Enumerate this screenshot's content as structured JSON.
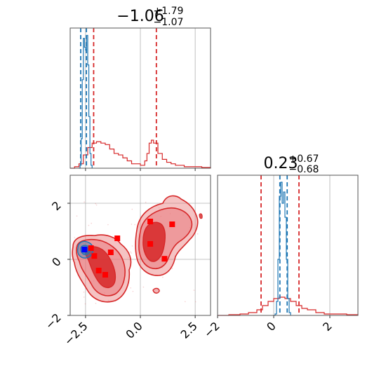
{
  "colors": {
    "red": "#d62728",
    "blue": "#1f77b4",
    "axis": "#555555",
    "grid": "#b0b0b0"
  },
  "chart_data": [
    {
      "type": "area",
      "panel": "top-left histogram",
      "title_main": "−1.06",
      "title_sup": "+1.79",
      "title_sub": "−1.07",
      "xlim": [
        -3.2,
        3.2
      ],
      "xgrid": [
        -2.5,
        0.0,
        2.5
      ],
      "series": [
        {
          "color": "red",
          "x": [
            -3.2,
            -3.0,
            -2.8,
            -2.6,
            -2.4,
            -2.2,
            -2.0,
            -1.8,
            -1.6,
            -1.4,
            -1.2,
            -1.0,
            -0.8,
            -0.6,
            -0.4,
            -0.2,
            0.0,
            0.2,
            0.3,
            0.4,
            0.5,
            0.6,
            0.8,
            1.0,
            1.2,
            1.4,
            1.6,
            1.8,
            2.0,
            2.4,
            2.8,
            3.2
          ],
          "values": [
            0,
            0.01,
            0.03,
            0.09,
            0.14,
            0.17,
            0.18,
            0.17,
            0.16,
            0.13,
            0.1,
            0.09,
            0.07,
            0.05,
            0.03,
            0.03,
            0.02,
            0.05,
            0.1,
            0.17,
            0.19,
            0.17,
            0.1,
            0.06,
            0.04,
            0.03,
            0.02,
            0.02,
            0.01,
            0.01,
            0.005,
            0
          ]
        },
        {
          "color": "blue",
          "x": [
            -2.8,
            -2.75,
            -2.7,
            -2.65,
            -2.6,
            -2.55,
            -2.5,
            -2.45,
            -2.4,
            -2.35,
            -2.3,
            -2.25,
            -2.2
          ],
          "values": [
            0,
            0.02,
            0.2,
            0.6,
            0.88,
            0.82,
            0.8,
            0.9,
            0.7,
            0.35,
            0.1,
            0.02,
            0
          ]
        }
      ],
      "quantile_lines": {
        "red": [
          -2.13,
          0.73
        ],
        "blue": [
          -2.72,
          -2.46
        ]
      }
    },
    {
      "type": "scatter",
      "panel": "bottom-left 2D density",
      "xlim": [
        -3.2,
        3.2
      ],
      "ylim": [
        -2,
        3
      ],
      "xticks": [
        "−2.5",
        "0.0",
        "2.5"
      ],
      "xtick_values": [
        -2.5,
        0.0,
        2.5
      ],
      "yticks": [
        "−2",
        "0",
        "2"
      ],
      "ytick_values": [
        -2,
        0,
        2
      ],
      "red_markers": [
        {
          "x": -1.05,
          "y": 0.75
        },
        {
          "x": -1.35,
          "y": 0.25
        },
        {
          "x": -2.25,
          "y": 0.4
        },
        {
          "x": -2.1,
          "y": 0.12
        },
        {
          "x": -1.9,
          "y": -0.4
        },
        {
          "x": -1.6,
          "y": -0.55
        },
        {
          "x": 0.45,
          "y": 1.35
        },
        {
          "x": 1.45,
          "y": 1.25
        },
        {
          "x": 0.45,
          "y": 0.55
        },
        {
          "x": 1.1,
          "y": 0.02
        }
      ],
      "blue_markers": [
        {
          "x": -2.55,
          "y": 0.35
        }
      ]
    },
    {
      "type": "area",
      "panel": "bottom-right histogram",
      "title_main": "0.23",
      "title_sup": "+0.67",
      "title_sub": "−0.68",
      "xlim": [
        -2,
        3
      ],
      "xticks": [
        "−2",
        "0",
        "2"
      ],
      "xtick_values": [
        -2,
        0,
        2
      ],
      "series": [
        {
          "color": "red",
          "x": [
            -2.0,
            -1.6,
            -1.2,
            -0.9,
            -0.6,
            -0.4,
            -0.2,
            0.0,
            0.2,
            0.4,
            0.6,
            0.8,
            1.0,
            1.2,
            1.5,
            1.8,
            2.2,
            2.6,
            3.0
          ],
          "values": [
            0,
            0.005,
            0.01,
            0.02,
            0.04,
            0.07,
            0.1,
            0.12,
            0.13,
            0.12,
            0.1,
            0.07,
            0.05,
            0.04,
            0.02,
            0.01,
            0.01,
            0.005,
            0
          ]
        },
        {
          "color": "blue",
          "x": [
            0.0,
            0.05,
            0.1,
            0.15,
            0.2,
            0.25,
            0.3,
            0.35,
            0.4,
            0.45,
            0.5,
            0.55,
            0.6
          ],
          "values": [
            0,
            0.01,
            0.1,
            0.4,
            0.85,
            0.95,
            0.8,
            0.88,
            0.7,
            0.4,
            0.12,
            0.02,
            0
          ]
        }
      ],
      "quantile_lines": {
        "red": [
          -0.45,
          0.9
        ],
        "blue": [
          0.22,
          0.48
        ]
      }
    }
  ]
}
